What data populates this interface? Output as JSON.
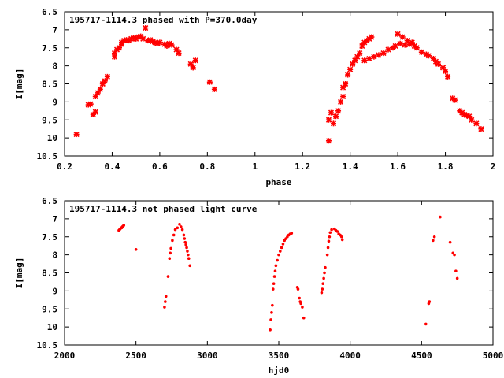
{
  "chart_data": [
    {
      "type": "scatter",
      "title": "195717-1114.3 phased with P=370.0day",
      "xlabel": "phase",
      "ylabel": "I[mag]",
      "xlim": [
        0.2,
        2.0
      ],
      "ylim": [
        6.5,
        10.5
      ],
      "y_inverted": true,
      "grid": false,
      "color": "#ff0000",
      "marker": "cross",
      "xticks": [
        0.2,
        0.4,
        0.6,
        0.8,
        1.0,
        1.2,
        1.4,
        1.6,
        1.8,
        2.0
      ],
      "xtick_labels": [
        "0.2",
        "0.4",
        "0.6",
        "0.8",
        "1",
        "1.2",
        "1.4",
        "1.6",
        "1.8",
        "2"
      ],
      "yticks": [
        6.5,
        7,
        7.5,
        8,
        8.5,
        9,
        9.5,
        10,
        10.5
      ],
      "ytick_labels": [
        "6.5",
        "7",
        "7.5",
        "8",
        "8.5",
        "9",
        "9.5",
        "10",
        "10.5"
      ],
      "points": [
        [
          0.25,
          9.9
        ],
        [
          0.3,
          9.08
        ],
        [
          0.31,
          9.06
        ],
        [
          0.32,
          9.35
        ],
        [
          0.33,
          9.28
        ],
        [
          0.33,
          8.85
        ],
        [
          0.34,
          8.75
        ],
        [
          0.35,
          8.65
        ],
        [
          0.36,
          8.5
        ],
        [
          0.37,
          8.42
        ],
        [
          0.38,
          8.3
        ],
        [
          0.41,
          7.75
        ],
        [
          0.41,
          7.65
        ],
        [
          0.42,
          7.55
        ],
        [
          0.43,
          7.5
        ],
        [
          0.44,
          7.4
        ],
        [
          0.44,
          7.35
        ],
        [
          0.45,
          7.3
        ],
        [
          0.46,
          7.28
        ],
        [
          0.47,
          7.3
        ],
        [
          0.48,
          7.25
        ],
        [
          0.49,
          7.22
        ],
        [
          0.5,
          7.25
        ],
        [
          0.51,
          7.2
        ],
        [
          0.52,
          7.18
        ],
        [
          0.53,
          7.25
        ],
        [
          0.54,
          6.95
        ],
        [
          0.55,
          7.3
        ],
        [
          0.56,
          7.28
        ],
        [
          0.57,
          7.32
        ],
        [
          0.58,
          7.35
        ],
        [
          0.59,
          7.38
        ],
        [
          0.6,
          7.35
        ],
        [
          0.62,
          7.4
        ],
        [
          0.63,
          7.45
        ],
        [
          0.64,
          7.38
        ],
        [
          0.65,
          7.42
        ],
        [
          0.67,
          7.55
        ],
        [
          0.68,
          7.65
        ],
        [
          0.73,
          7.95
        ],
        [
          0.74,
          8.05
        ],
        [
          0.75,
          7.85
        ],
        [
          0.81,
          8.45
        ],
        [
          0.83,
          8.65
        ],
        [
          1.31,
          10.08
        ],
        [
          1.31,
          9.5
        ],
        [
          1.32,
          9.3
        ],
        [
          1.33,
          9.6
        ],
        [
          1.34,
          9.4
        ],
        [
          1.35,
          9.25
        ],
        [
          1.36,
          9.0
        ],
        [
          1.37,
          8.85
        ],
        [
          1.37,
          8.6
        ],
        [
          1.38,
          8.5
        ],
        [
          1.39,
          8.25
        ],
        [
          1.4,
          8.1
        ],
        [
          1.41,
          7.95
        ],
        [
          1.42,
          7.85
        ],
        [
          1.43,
          7.75
        ],
        [
          1.44,
          7.65
        ],
        [
          1.45,
          7.45
        ],
        [
          1.46,
          7.35
        ],
        [
          1.47,
          7.3
        ],
        [
          1.48,
          7.25
        ],
        [
          1.49,
          7.2
        ],
        [
          1.46,
          7.85
        ],
        [
          1.48,
          7.8
        ],
        [
          1.5,
          7.75
        ],
        [
          1.52,
          7.7
        ],
        [
          1.54,
          7.65
        ],
        [
          1.56,
          7.55
        ],
        [
          1.58,
          7.5
        ],
        [
          1.59,
          7.45
        ],
        [
          1.6,
          7.12
        ],
        [
          1.61,
          7.38
        ],
        [
          1.62,
          7.2
        ],
        [
          1.63,
          7.42
        ],
        [
          1.64,
          7.3
        ],
        [
          1.65,
          7.4
        ],
        [
          1.66,
          7.35
        ],
        [
          1.67,
          7.45
        ],
        [
          1.68,
          7.5
        ],
        [
          1.7,
          7.62
        ],
        [
          1.72,
          7.68
        ],
        [
          1.73,
          7.72
        ],
        [
          1.75,
          7.8
        ],
        [
          1.76,
          7.88
        ],
        [
          1.77,
          7.95
        ],
        [
          1.79,
          8.05
        ],
        [
          1.8,
          8.15
        ],
        [
          1.81,
          8.3
        ],
        [
          1.83,
          8.9
        ],
        [
          1.84,
          8.95
        ],
        [
          1.86,
          9.25
        ],
        [
          1.87,
          9.3
        ],
        [
          1.88,
          9.35
        ],
        [
          1.89,
          9.38
        ],
        [
          1.9,
          9.4
        ],
        [
          1.91,
          9.5
        ],
        [
          1.93,
          9.6
        ],
        [
          1.95,
          9.75
        ]
      ]
    },
    {
      "type": "scatter",
      "title": "195717-1114.3 not phased light curve",
      "xlabel": "hjd0",
      "ylabel": "I[mag]",
      "xlim": [
        2000,
        5000
      ],
      "ylim": [
        6.5,
        10.5
      ],
      "y_inverted": true,
      "grid": false,
      "color": "#ff0000",
      "marker": "dot",
      "xticks": [
        2000,
        2500,
        3000,
        3500,
        4000,
        4500,
        5000
      ],
      "xtick_labels": [
        "2000",
        "2500",
        "3000",
        "3500",
        "4000",
        "4500",
        "5000"
      ],
      "yticks": [
        6.5,
        7,
        7.5,
        8,
        8.5,
        9,
        9.5,
        10,
        10.5
      ],
      "ytick_labels": [
        "6.5",
        "7",
        "7.5",
        "8",
        "8.5",
        "9",
        "9.5",
        "10",
        "10.5"
      ],
      "points": [
        [
          2380,
          7.32
        ],
        [
          2385,
          7.3
        ],
        [
          2390,
          7.28
        ],
        [
          2395,
          7.25
        ],
        [
          2400,
          7.25
        ],
        [
          2405,
          7.22
        ],
        [
          2410,
          7.2
        ],
        [
          2415,
          7.18
        ],
        [
          2500,
          7.85
        ],
        [
          2700,
          9.45
        ],
        [
          2705,
          9.3
        ],
        [
          2710,
          9.15
        ],
        [
          2725,
          8.6
        ],
        [
          2735,
          8.1
        ],
        [
          2740,
          7.95
        ],
        [
          2745,
          7.82
        ],
        [
          2755,
          7.6
        ],
        [
          2765,
          7.45
        ],
        [
          2775,
          7.3
        ],
        [
          2790,
          7.25
        ],
        [
          2805,
          7.15
        ],
        [
          2815,
          7.22
        ],
        [
          2825,
          7.3
        ],
        [
          2835,
          7.45
        ],
        [
          2840,
          7.55
        ],
        [
          2845,
          7.65
        ],
        [
          2850,
          7.72
        ],
        [
          2855,
          7.8
        ],
        [
          2860,
          7.9
        ],
        [
          2865,
          8.0
        ],
        [
          2870,
          8.1
        ],
        [
          2878,
          8.3
        ],
        [
          3440,
          10.08
        ],
        [
          3445,
          9.8
        ],
        [
          3450,
          9.6
        ],
        [
          3455,
          9.4
        ],
        [
          3460,
          8.95
        ],
        [
          3465,
          8.8
        ],
        [
          3470,
          8.6
        ],
        [
          3475,
          8.45
        ],
        [
          3480,
          8.3
        ],
        [
          3490,
          8.15
        ],
        [
          3500,
          8.0
        ],
        [
          3510,
          7.9
        ],
        [
          3520,
          7.8
        ],
        [
          3530,
          7.7
        ],
        [
          3540,
          7.6
        ],
        [
          3550,
          7.55
        ],
        [
          3560,
          7.5
        ],
        [
          3570,
          7.45
        ],
        [
          3580,
          7.42
        ],
        [
          3590,
          7.4
        ],
        [
          3630,
          8.9
        ],
        [
          3635,
          8.95
        ],
        [
          3645,
          9.2
        ],
        [
          3650,
          9.3
        ],
        [
          3655,
          9.35
        ],
        [
          3665,
          9.45
        ],
        [
          3675,
          9.75
        ],
        [
          3800,
          9.05
        ],
        [
          3805,
          8.95
        ],
        [
          3810,
          8.8
        ],
        [
          3815,
          8.65
        ],
        [
          3820,
          8.5
        ],
        [
          3825,
          8.35
        ],
        [
          3840,
          8.0
        ],
        [
          3845,
          7.8
        ],
        [
          3850,
          7.62
        ],
        [
          3855,
          7.5
        ],
        [
          3860,
          7.38
        ],
        [
          3870,
          7.3
        ],
        [
          3890,
          7.28
        ],
        [
          3900,
          7.32
        ],
        [
          3910,
          7.35
        ],
        [
          3920,
          7.42
        ],
        [
          3930,
          7.45
        ],
        [
          3940,
          7.5
        ],
        [
          3945,
          7.58
        ],
        [
          4530,
          9.92
        ],
        [
          4550,
          9.35
        ],
        [
          4555,
          9.3
        ],
        [
          4580,
          7.6
        ],
        [
          4590,
          7.5
        ],
        [
          4630,
          6.95
        ],
        [
          4700,
          7.65
        ],
        [
          4720,
          7.95
        ],
        [
          4730,
          8.0
        ],
        [
          4740,
          8.45
        ],
        [
          4750,
          8.65
        ]
      ]
    }
  ]
}
